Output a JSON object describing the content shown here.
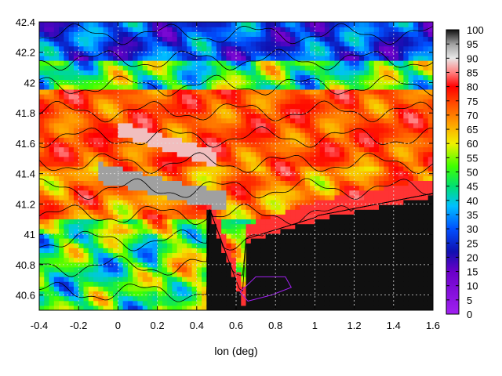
{
  "chart_data": {
    "type": "heatmap",
    "title": "",
    "xlabel": "lon (deg)",
    "ylabel": "",
    "xlim": [
      -0.4,
      1.6
    ],
    "ylim": [
      40.5,
      42.4
    ],
    "x_ticks": [
      "-0.4",
      "-0.2",
      "0",
      "0.2",
      "0.4",
      "0.6",
      "0.8",
      "1",
      "1.2",
      "1.4",
      "1.6"
    ],
    "y_ticks": [
      "40.6",
      "40.8",
      "41",
      "41.2",
      "41.4",
      "41.6",
      "41.8",
      "42",
      "42.2",
      "42.4"
    ],
    "colorbar": {
      "range": [
        0,
        100
      ],
      "ticks": [
        "0",
        "5",
        "10",
        "15",
        "20",
        "25",
        "30",
        "35",
        "40",
        "45",
        "50",
        "55",
        "60",
        "65",
        "70",
        "75",
        "80",
        "85",
        "90",
        "95",
        "100"
      ],
      "stops": [
        {
          "v": 0,
          "color": "#a020f0"
        },
        {
          "v": 15,
          "color": "#6a00c8"
        },
        {
          "v": 22,
          "color": "#1010b0"
        },
        {
          "v": 30,
          "color": "#0050ff"
        },
        {
          "v": 38,
          "color": "#00c0ff"
        },
        {
          "v": 45,
          "color": "#00e070"
        },
        {
          "v": 52,
          "color": "#40ff00"
        },
        {
          "v": 60,
          "color": "#f0f000"
        },
        {
          "v": 67,
          "color": "#ffa000"
        },
        {
          "v": 75,
          "color": "#ff4000"
        },
        {
          "v": 80,
          "color": "#ff0000"
        },
        {
          "v": 85,
          "color": "#ff8080"
        },
        {
          "v": 90,
          "color": "#e8e8e8"
        },
        {
          "v": 95,
          "color": "#a0a0a0"
        },
        {
          "v": 100,
          "color": "#101010"
        }
      ]
    },
    "grid": true,
    "contours": true,
    "sea_value": 100
  }
}
